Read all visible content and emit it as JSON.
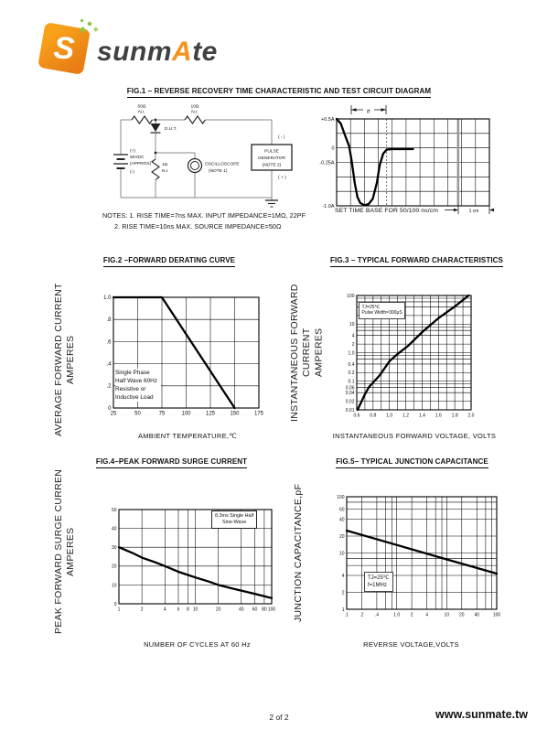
{
  "page": {
    "footer_page": "2 of 2",
    "footer_site": "www.sunmate.tw"
  },
  "logo": {
    "wordmark_1": "sunm",
    "wordmark_accent": "A",
    "wordmark_2": "te",
    "brand_color": "#f6921e",
    "spark_color": "#8dc63f"
  },
  "fig1": {
    "title": "FIG.1 – REVERSE RECOVERY TIME CHARACTERISTIC AND TEST CIRCUIT DIAGRAM",
    "circuit": {
      "r1_value": "50Ω",
      "r1_tag": "N.I.",
      "r2_value": "10Ω",
      "r2_tag": "N.I.",
      "dut": "D.U.T.",
      "bat_plus": "(+)",
      "bat_v": "50VDC",
      "bat_approx": "(APPROX)",
      "bat_minus": "(-)",
      "r3_value": "1Ω",
      "r3_tag": "N.I.",
      "scope_1": "OSCILLOSCOPE",
      "scope_2": "(NOTE 1)",
      "pg_1": "PULSE",
      "pg_2": "GENERATOR",
      "pg_3": "(NOTE 2)",
      "pg_minus": "( - )",
      "pg_plus": "( + )"
    },
    "notes_1": "NOTES: 1. RISE TIME=7ns MAX. INPUT IMPEDANCE=1MΩ, 22PF",
    "notes_2": "2. RISE TIME=10ns MAX. SOURCE IMPEDANCE=50Ω",
    "tr_label": "tr",
    "cm_label": "1 cm"
  },
  "chart_data": [
    {
      "id": "fig1_waveform",
      "type": "line",
      "title": "Reverse recovery current waveform",
      "xlabel": "SET TIME BASE FOR 50/100 ns/cm",
      "ylabel": "",
      "x_unit": "cm",
      "y_unit": "A",
      "xscale": "linear",
      "yscale": "linear",
      "xlim": [
        0,
        11
      ],
      "ylim": [
        -1.0,
        0.5
      ],
      "x_grid": [
        1,
        2,
        3,
        4,
        5,
        6,
        7,
        8,
        9,
        10
      ],
      "y_grid": [
        0.25,
        0,
        -0.25,
        -0.5,
        -0.75
      ],
      "x_ticks": [],
      "y_ticks": [
        {
          "v": 0.5,
          "label": "+0.5A"
        },
        {
          "v": 0,
          "label": "0"
        },
        {
          "v": -0.25,
          "label": "-0.25A"
        },
        {
          "v": -1.0,
          "label": "-1.0A"
        }
      ],
      "vlines": [
        {
          "v": 3.6,
          "color": "#555555",
          "width": 0.8,
          "dash": "2,2"
        },
        {
          "v": 8.75,
          "color": "#9a9a9a",
          "width": 2.6,
          "dash": ""
        }
      ],
      "points": [
        [
          0,
          0.5
        ],
        [
          0.3,
          0.42
        ],
        [
          0.6,
          0.22
        ],
        [
          0.9,
          0.03
        ],
        [
          1.1,
          -0.25
        ],
        [
          1.3,
          -0.6
        ],
        [
          1.5,
          -0.85
        ],
        [
          1.7,
          -0.95
        ],
        [
          2.0,
          -0.99
        ],
        [
          2.3,
          -0.97
        ],
        [
          2.6,
          -0.88
        ],
        [
          2.9,
          -0.6
        ],
        [
          3.1,
          -0.3
        ],
        [
          3.35,
          -0.1
        ],
        [
          3.6,
          -0.03
        ],
        [
          4.0,
          -0.02
        ],
        [
          5.5,
          -0.02
        ]
      ]
    },
    {
      "id": "fig2",
      "type": "line",
      "title": "FIG.2 –FORWARD DERATING CURVE",
      "xlabel": "AMBIENT TEMPERATURE,℃",
      "ylabel": "AVERAGE FORWARD CURRENT\nAMPERES",
      "annotation": "Single Phase\nHalf Wave 60Hz\nResistive or\nInductive Load",
      "xscale": "linear",
      "yscale": "linear",
      "xlim": [
        25,
        175
      ],
      "ylim": [
        0,
        1.0
      ],
      "x_grid": [
        50,
        75,
        100,
        125,
        150
      ],
      "y_grid": [
        0.2,
        0.4,
        0.6,
        0.8
      ],
      "x_ticks": [
        {
          "v": 25,
          "label": "25"
        },
        {
          "v": 50,
          "label": "50"
        },
        {
          "v": 75,
          "label": "75"
        },
        {
          "v": 100,
          "label": "100"
        },
        {
          "v": 125,
          "label": "125"
        },
        {
          "v": 150,
          "label": "150"
        },
        {
          "v": 175,
          "label": "175"
        }
      ],
      "y_ticks": [
        {
          "v": 0,
          "label": "0"
        },
        {
          "v": 0.2,
          "label": ".2"
        },
        {
          "v": 0.4,
          "label": ".4"
        },
        {
          "v": 0.6,
          "label": ".6"
        },
        {
          "v": 0.8,
          "label": ".8"
        },
        {
          "v": 1.0,
          "label": "1.0"
        }
      ],
      "points": [
        [
          25,
          1.0
        ],
        [
          75,
          1.0
        ],
        [
          150,
          0
        ]
      ]
    },
    {
      "id": "fig3",
      "type": "line",
      "title": "FIG.3 – TYPICAL FORWARD CHARACTERISTICS",
      "xlabel": "INSTANTANEOUS FORWARD VOLTAGE, VOLTS",
      "ylabel": "INSTANTANEOUS FORWARD CURRENT\nAMPERES",
      "annotation": "TJ=25℃\nPulse Width=300μS",
      "xscale": "linear",
      "yscale": "log",
      "xlim": [
        0.6,
        2.0
      ],
      "ylim": [
        0.01,
        100
      ],
      "x_grid": [
        0.7,
        0.8,
        0.9,
        1.0,
        1.1,
        1.2,
        1.3,
        1.4,
        1.5,
        1.6,
        1.7,
        1.8,
        1.9
      ],
      "y_grid": [
        0.02,
        0.04,
        0.06,
        0.08,
        0.1,
        0.2,
        0.4,
        0.6,
        0.8,
        1,
        2,
        4,
        6,
        8,
        10,
        20,
        40,
        60,
        80
      ],
      "x_ticks": [
        {
          "v": 0.6,
          "label": "0.6"
        },
        {
          "v": 0.8,
          "label": "0.8"
        },
        {
          "v": 1.0,
          "label": "1.0"
        },
        {
          "v": 1.2,
          "label": "1.2"
        },
        {
          "v": 1.4,
          "label": "1.4"
        },
        {
          "v": 1.6,
          "label": "1.6"
        },
        {
          "v": 1.8,
          "label": "1.8"
        },
        {
          "v": 2.0,
          "label": "2.0"
        }
      ],
      "y_ticks": [
        {
          "v": 100,
          "label": "100"
        },
        {
          "v": 10,
          "label": "10"
        },
        {
          "v": 4,
          "label": "4"
        },
        {
          "v": 2,
          "label": "2"
        },
        {
          "v": 1,
          "label": "1.0"
        },
        {
          "v": 0.4,
          "label": "0.4"
        },
        {
          "v": 0.2,
          "label": "0.2"
        },
        {
          "v": 0.1,
          "label": "0.1"
        },
        {
          "v": 0.06,
          "label": "0.06"
        },
        {
          "v": 0.04,
          "label": "0.04"
        },
        {
          "v": 0.02,
          "label": "0.02"
        },
        {
          "v": 0.01,
          "label": "0.01"
        }
      ],
      "points": [
        [
          0.61,
          0.01
        ],
        [
          0.7,
          0.035
        ],
        [
          0.75,
          0.063
        ],
        [
          0.88,
          0.16
        ],
        [
          1.0,
          0.5
        ],
        [
          1.1,
          0.9
        ],
        [
          1.23,
          1.74
        ],
        [
          1.4,
          5.2
        ],
        [
          1.6,
          16
        ],
        [
          1.8,
          41
        ],
        [
          1.97,
          100
        ]
      ]
    },
    {
      "id": "fig4",
      "type": "line",
      "title": "FIG.4–PEAK FORWARD SURGE CURRENT",
      "xlabel": "NUMBER OF CYCLES AT 60 Hz",
      "ylabel": "PEAK FORWARD SURGE CURREN\nAMPERES",
      "annotation": "8.3ms Single Half\nSine-Wave",
      "xscale": "log",
      "yscale": "linear",
      "xlim": [
        1,
        100
      ],
      "ylim": [
        0,
        50
      ],
      "x_grid": [
        2,
        4,
        6,
        8,
        10,
        20,
        40,
        60,
        80
      ],
      "y_grid": [
        10,
        20,
        30,
        40
      ],
      "x_ticks": [
        {
          "v": 1,
          "label": "1"
        },
        {
          "v": 2,
          "label": "2"
        },
        {
          "v": 4,
          "label": "4"
        },
        {
          "v": 6,
          "label": "6"
        },
        {
          "v": 8,
          "label": "8"
        },
        {
          "v": 10,
          "label": "10"
        },
        {
          "v": 20,
          "label": "20"
        },
        {
          "v": 40,
          "label": "40"
        },
        {
          "v": 60,
          "label": "60"
        },
        {
          "v": 80,
          "label": "80"
        },
        {
          "v": 100,
          "label": "100"
        }
      ],
      "y_ticks": [
        {
          "v": 0,
          "label": "0"
        },
        {
          "v": 10,
          "label": "10"
        },
        {
          "v": 20,
          "label": "20"
        },
        {
          "v": 30,
          "label": "30"
        },
        {
          "v": 40,
          "label": "40"
        },
        {
          "v": 50,
          "label": "50"
        }
      ],
      "points": [
        [
          1,
          30
        ],
        [
          1.5,
          27
        ],
        [
          2,
          24.5
        ],
        [
          3,
          22
        ],
        [
          4,
          20
        ],
        [
          6,
          17
        ],
        [
          8,
          15.3
        ],
        [
          10,
          14
        ],
        [
          15,
          11.8
        ],
        [
          20,
          10
        ],
        [
          30,
          8.2
        ],
        [
          40,
          7
        ],
        [
          60,
          5.3
        ],
        [
          80,
          4
        ],
        [
          100,
          3
        ]
      ]
    },
    {
      "id": "fig5",
      "type": "line",
      "title": "FIG.5– TYPICAL JUNCTION CAPACITANCE",
      "xlabel": "REVERSE VOLTAGE,VOLTS",
      "ylabel": "JUNCTION CAPACITANCE,pF",
      "annotation": "TJ=25℃\nf=1MHz",
      "xscale": "log",
      "yscale": "log",
      "xlim": [
        0.1,
        100
      ],
      "ylim": [
        1,
        100
      ],
      "x_grid": [
        0.2,
        0.4,
        0.6,
        0.8,
        1,
        2,
        4,
        6,
        8,
        10,
        20,
        40,
        60,
        80
      ],
      "y_grid": [
        2,
        4,
        6,
        8,
        10,
        20,
        40,
        60,
        80
      ],
      "x_ticks": [
        {
          "v": 0.1,
          "label": ".1"
        },
        {
          "v": 0.2,
          "label": ".2"
        },
        {
          "v": 0.4,
          "label": ".4"
        },
        {
          "v": 1,
          "label": "1.0"
        },
        {
          "v": 2,
          "label": "2"
        },
        {
          "v": 4,
          "label": "4"
        },
        {
          "v": 10,
          "label": "10"
        },
        {
          "v": 20,
          "label": "20"
        },
        {
          "v": 40,
          "label": "40"
        },
        {
          "v": 100,
          "label": "100"
        }
      ],
      "y_ticks": [
        {
          "v": 1,
          "label": "1"
        },
        {
          "v": 2,
          "label": "2"
        },
        {
          "v": 4,
          "label": "4"
        },
        {
          "v": 10,
          "label": "10"
        },
        {
          "v": 20,
          "label": "20"
        },
        {
          "v": 40,
          "label": "40"
        },
        {
          "v": 60,
          "label": "60"
        },
        {
          "v": 100,
          "label": "100"
        }
      ],
      "points": [
        [
          0.1,
          25
        ],
        [
          1,
          13.9
        ],
        [
          10,
          7.7
        ],
        [
          100,
          4.3
        ]
      ]
    }
  ]
}
